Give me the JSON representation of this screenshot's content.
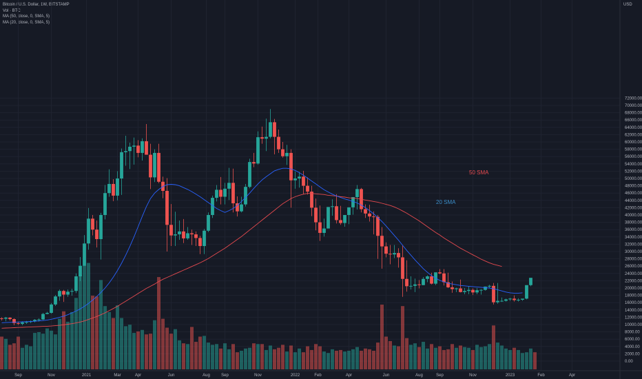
{
  "header": {
    "symbol_line": "Bitcoin / U.S. Dollar, 1W, BITSTAMP",
    "vol_line": "Vol · BTC",
    "ma50_line": "MA (50, close, 0, SMA, 5)",
    "ma20_line": "MA (20, close, 0, SMA, 5)"
  },
  "chart_data": {
    "type": "candlestick",
    "title": "Bitcoin / U.S. Dollar, 1W, BITSTAMP",
    "currency_label": "USD",
    "ylim": [
      -1000,
      73000
    ],
    "y_ticks": [
      "72000.00",
      "70000.00",
      "68000.00",
      "66000.00",
      "64000.00",
      "62000.00",
      "60000.00",
      "58000.00",
      "56000.00",
      "54000.00",
      "52000.00",
      "50000.00",
      "48000.00",
      "46000.00",
      "44000.00",
      "42000.00",
      "40000.00",
      "38000.00",
      "36000.00",
      "34000.00",
      "32000.00",
      "30000.00",
      "28000.00",
      "26000.00",
      "24000.00",
      "22000.00",
      "20000.00",
      "18000.00",
      "16000.00",
      "14000.00",
      "12000.00",
      "10000.00",
      "8000.00",
      "6000.00",
      "4000.00",
      "2000.00",
      "0.00"
    ],
    "x_ticks": [
      "Sep",
      "Nov",
      "2021",
      "Mar",
      "Apr",
      "Jun",
      "Aug",
      "Sep",
      "Nov",
      "2022",
      "Feb",
      "Apr",
      "Jun",
      "Aug",
      "Sep",
      "Nov",
      "2023",
      "Feb",
      "Apr"
    ],
    "x_tick_weeks": [
      4,
      12,
      20.5,
      28,
      33,
      41,
      49.5,
      54,
      62,
      71,
      76.5,
      84,
      93,
      101,
      106,
      114,
      123,
      130.5,
      138
    ],
    "up_color": "#26a69a",
    "down_color": "#ef5350",
    "grid": true,
    "series": [
      {
        "name": "Price",
        "opens": [
          11700,
          11600,
          11900,
          11500,
          10400,
          10200,
          10600,
          10700,
          10900,
          11300,
          11400,
          12900,
          13200,
          15500,
          17700,
          19200,
          18200,
          19000,
          19200,
          23200,
          26100,
          32200,
          39000,
          36000,
          33400,
          40000,
          46000,
          48500,
          45300,
          50000,
          57200,
          57500,
          58700,
          59000,
          57000,
          60200,
          56500,
          50300,
          57000,
          49100,
          46600,
          37300,
          34400,
          34700,
          35500,
          33600,
          35000,
          34700,
          33700,
          31500,
          35700,
          40000,
          44700,
          46900,
          45000,
          47200,
          48800,
          43200,
          41000,
          42900,
          47700,
          54500,
          54100,
          61300,
          60900,
          61400,
          65400,
          61400,
          58000,
          56100,
          57000,
          49500,
          50000,
          50500,
          48000,
          46400,
          42000,
          38000,
          35100,
          36300,
          42200,
          42400,
          38600,
          37800,
          40000,
          42100,
          44900,
          47100,
          41600,
          40400,
          39600,
          39500,
          34300,
          31400,
          29400,
          29200,
          29600,
          28400,
          22500,
          20500,
          20600,
          21000,
          20800,
          22500,
          23200,
          21200,
          24300,
          24000,
          21600,
          20200,
          19700,
          19900,
          18900,
          19200,
          19500,
          18800,
          19400,
          19500,
          20400,
          20600,
          16100,
          16500,
          16500,
          16900,
          17100,
          16700,
          16800,
          17100,
          20800
        ],
        "closes": [
          11600,
          11900,
          11500,
          10400,
          10200,
          10600,
          10700,
          10900,
          11300,
          11400,
          12900,
          13200,
          15500,
          17700,
          19200,
          18200,
          19000,
          19200,
          23200,
          26100,
          32200,
          39000,
          36000,
          33400,
          40000,
          46000,
          48500,
          45300,
          50000,
          57200,
          57500,
          58700,
          59000,
          57000,
          60200,
          56500,
          50300,
          57000,
          49100,
          46600,
          37300,
          34400,
          34700,
          35500,
          33600,
          35000,
          34700,
          33700,
          31500,
          35700,
          40000,
          44700,
          46900,
          45000,
          47200,
          48800,
          43200,
          41000,
          42900,
          47700,
          54500,
          54100,
          61300,
          60900,
          61400,
          65400,
          61400,
          58000,
          56100,
          57000,
          49500,
          50000,
          50500,
          48000,
          46400,
          42000,
          38000,
          35100,
          36300,
          42200,
          42400,
          38600,
          37800,
          40000,
          42100,
          44900,
          47100,
          41600,
          40400,
          39600,
          39500,
          34300,
          31400,
          29400,
          29200,
          29600,
          28400,
          22500,
          20500,
          20600,
          21000,
          20800,
          22500,
          23200,
          21200,
          24300,
          24000,
          21600,
          20200,
          19700,
          19900,
          18900,
          19200,
          19500,
          18800,
          19400,
          19500,
          20400,
          20600,
          16100,
          16500,
          16500,
          16900,
          17100,
          16700,
          16800,
          17100,
          20800,
          22800
        ],
        "highs": [
          12000,
          12100,
          12000,
          11700,
          10800,
          10900,
          11000,
          11100,
          11500,
          11700,
          13200,
          13500,
          15900,
          18100,
          19600,
          19500,
          19600,
          19800,
          24000,
          28500,
          34500,
          41900,
          40000,
          38500,
          40600,
          48200,
          52500,
          49800,
          52000,
          58200,
          61700,
          59800,
          61200,
          60500,
          61000,
          64900,
          59500,
          58000,
          59500,
          50500,
          50100,
          43000,
          40900,
          38500,
          38900,
          36700,
          36000,
          35500,
          34300,
          36200,
          40700,
          45300,
          48200,
          50400,
          48800,
          52900,
          52700,
          45100,
          45000,
          48500,
          55400,
          57000,
          62900,
          64200,
          66400,
          69000,
          66300,
          63400,
          60000,
          59200,
          58000,
          51900,
          51800,
          52100,
          50300,
          48000,
          44500,
          42600,
          39000,
          38300,
          44300,
          45700,
          42500,
          39600,
          40900,
          42600,
          48200,
          47400,
          42900,
          42800,
          41000,
          40000,
          36700,
          32500,
          31800,
          31800,
          30900,
          31700,
          27600,
          23200,
          22600,
          22200,
          23000,
          23500,
          24200,
          23900,
          25200,
          25200,
          24200,
          21800,
          20100,
          22300,
          20000,
          20500,
          19900,
          20000,
          19700,
          20400,
          20900,
          21400,
          21400,
          17400,
          17100,
          17300,
          18000,
          17200,
          17000,
          17200,
          21000,
          23300
        ],
        "lows": [
          11100,
          10900,
          11100,
          9800,
          9900,
          9800,
          10200,
          10400,
          10600,
          10800,
          11200,
          12800,
          13000,
          15100,
          16500,
          16200,
          17600,
          17900,
          18600,
          21900,
          26100,
          30500,
          34400,
          31100,
          27800,
          38800,
          45000,
          43800,
          44000,
          45500,
          53500,
          52600,
          53800,
          55800,
          54900,
          57000,
          47100,
          49000,
          48700,
          44600,
          30000,
          31500,
          31500,
          33200,
          32300,
          33200,
          31800,
          31500,
          29300,
          29300,
          35300,
          39200,
          43700,
          42900,
          42900,
          44100,
          40700,
          39600,
          40700,
          42300,
          47300,
          53100,
          53800,
          59500,
          57500,
          61000,
          56600,
          57000,
          55700,
          53700,
          42000,
          47200,
          47500,
          45700,
          45600,
          39700,
          35800,
          32900,
          34100,
          36800,
          39800,
          37700,
          37300,
          36800,
          37500,
          40100,
          41500,
          40700,
          39200,
          38200,
          34700,
          28000,
          25300,
          28400,
          26500,
          28200,
          25600,
          17600,
          19000,
          19600,
          18900,
          19900,
          20800,
          21600,
          21000,
          20800,
          23800,
          20700,
          20000,
          18700,
          18900,
          18800,
          18300,
          18300,
          18100,
          18300,
          18200,
          19300,
          19900,
          15500,
          15700,
          16200,
          16300,
          16500,
          16300,
          16300,
          16500,
          16900,
          20500
        ],
        "volumes": [
          4400,
          4100,
          3300,
          3500,
          4400,
          2900,
          3300,
          3100,
          4900,
          5000,
          4800,
          5500,
          5200,
          4700,
          6800,
          7800,
          6400,
          7700,
          9600,
          12700,
          14000,
          14300,
          9900,
          9800,
          12000,
          8500,
          7700,
          6900,
          8600,
          6900,
          5800,
          6000,
          4900,
          5100,
          5300,
          4700,
          4800,
          6600,
          12400,
          6800,
          5600,
          4800,
          5400,
          3900,
          3500,
          3400,
          5700,
          3700,
          4400,
          4500,
          3600,
          3300,
          3400,
          2800,
          3500,
          2700,
          3400,
          2300,
          2500,
          2800,
          2900,
          3500,
          3400,
          3400,
          2600,
          3200,
          2700,
          2900,
          3300,
          2400,
          3200,
          2300,
          2800,
          2300,
          3100,
          2600,
          3400,
          3100,
          2400,
          2200,
          2700,
          2500,
          2600,
          2400,
          2500,
          2700,
          3000,
          2500,
          2800,
          2700,
          2500,
          3600,
          8700,
          4400,
          3800,
          3200,
          3100,
          8500,
          4200,
          3300,
          3500,
          3000,
          3700,
          2800,
          3400,
          2900,
          3100,
          2600,
          2700,
          3400,
          2900,
          3200,
          3000,
          2900,
          2600,
          3300,
          3000,
          3100,
          3400,
          5900,
          3600,
          3200,
          2800,
          2600,
          2900,
          2600,
          2200,
          2300,
          2800,
          2300
        ]
      }
    ],
    "overlays": [
      {
        "name": "50 SMA",
        "color": "#e64a4f",
        "start_week": 0,
        "values": [
          9000,
          9050,
          9100,
          9150,
          9200,
          9250,
          9300,
          9350,
          9400,
          9450,
          9500,
          9550,
          9600,
          9700,
          9800,
          9950,
          10100,
          10250,
          10450,
          10700,
          11000,
          11400,
          11800,
          12200,
          12700,
          13200,
          13800,
          14400,
          15000,
          15700,
          16400,
          17100,
          17800,
          18500,
          19200,
          19900,
          20500,
          21100,
          21800,
          22400,
          22900,
          23400,
          23900,
          24400,
          24900,
          25400,
          25900,
          26400,
          26900,
          27500,
          28100,
          28800,
          29500,
          30200,
          30900,
          31700,
          32500,
          33300,
          34100,
          35000,
          35900,
          36800,
          37700,
          38600,
          39500,
          40400,
          41300,
          42200,
          43100,
          43800,
          44500,
          45000,
          45400,
          45700,
          45900,
          45900,
          45800,
          45700,
          45600,
          45400,
          45300,
          45200,
          45000,
          44900,
          44700,
          44600,
          44500,
          44300,
          44100,
          43900,
          43700,
          43500,
          43200,
          42900,
          42600,
          42200,
          41700,
          41100,
          40500,
          39800,
          39100,
          38400,
          37600,
          36800,
          36000,
          35200,
          34500,
          33700,
          33000,
          32300,
          31600,
          30900,
          30300,
          29700,
          29100,
          28500,
          27900,
          27400,
          26900,
          26500,
          26200,
          25900
        ]
      },
      {
        "name": "20 SMA",
        "color": "#2962ff",
        "start_week": 0,
        "values": [
          10500,
          10550,
          10600,
          10650,
          10700,
          10750,
          10800,
          10850,
          10900,
          11000,
          11100,
          11250,
          11450,
          11700,
          12000,
          12300,
          12700,
          13200,
          13700,
          14300,
          15000,
          15800,
          16700,
          17700,
          18800,
          20000,
          21400,
          23000,
          24800,
          26800,
          29000,
          31400,
          34000,
          36800,
          39600,
          42300,
          44500,
          46000,
          47000,
          47800,
          48300,
          48400,
          48300,
          48000,
          47500,
          47000,
          46400,
          45700,
          45000,
          44200,
          43400,
          42600,
          41800,
          41200,
          40700,
          41200,
          41800,
          42600,
          43700,
          44800,
          46000,
          47300,
          48500,
          49600,
          50500,
          51300,
          52100,
          52500,
          52800,
          52800,
          52600,
          52200,
          51600,
          50900,
          50100,
          49300,
          48500,
          47700,
          46900,
          46300,
          45700,
          45200,
          44800,
          44400,
          44100,
          43700,
          43300,
          42700,
          42000,
          41200,
          40300,
          39300,
          38200,
          37000,
          35700,
          34400,
          33100,
          31700,
          30300,
          29000,
          27700,
          26500,
          25300,
          24300,
          23400,
          22700,
          22100,
          21700,
          21300,
          21100,
          20900,
          20700,
          20600,
          20500,
          20400,
          20300,
          20200,
          20100,
          20000,
          19800,
          19500,
          19200,
          18900,
          18700,
          18600,
          18600,
          18700
        ]
      }
    ],
    "annotations": [
      {
        "text": "50 SMA",
        "color": "#e64a4f"
      },
      {
        "text": "20 SMA",
        "color": "#3b8ec9"
      }
    ]
  }
}
